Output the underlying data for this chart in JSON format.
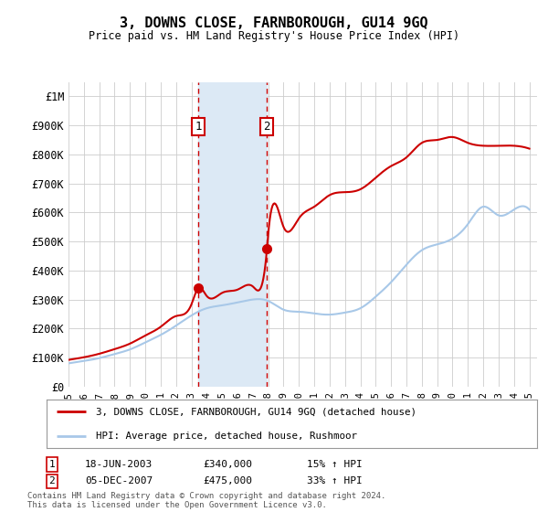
{
  "title": "3, DOWNS CLOSE, FARNBOROUGH, GU14 9GQ",
  "subtitle": "Price paid vs. HM Land Registry's House Price Index (HPI)",
  "ylabel_ticks": [
    "£0",
    "£100K",
    "£200K",
    "£300K",
    "£400K",
    "£500K",
    "£600K",
    "£700K",
    "£800K",
    "£900K",
    "£1M"
  ],
  "ytick_values": [
    0,
    100000,
    200000,
    300000,
    400000,
    500000,
    600000,
    700000,
    800000,
    900000,
    1000000
  ],
  "ylim": [
    0,
    1050000
  ],
  "sale1": {
    "date_label": "18-JUN-2003",
    "price": 340000,
    "pct": "15%",
    "direction": "↑",
    "num": "1"
  },
  "sale2": {
    "date_label": "05-DEC-2007",
    "price": 475000,
    "pct": "33%",
    "direction": "↑",
    "num": "2"
  },
  "sale1_x": 2003.46,
  "sale2_x": 2007.92,
  "legend_line1": "3, DOWNS CLOSE, FARNBOROUGH, GU14 9GQ (detached house)",
  "legend_line2": "HPI: Average price, detached house, Rushmoor",
  "footer": "Contains HM Land Registry data © Crown copyright and database right 2024.\nThis data is licensed under the Open Government Licence v3.0.",
  "hpi_color": "#a8c8e8",
  "price_color": "#cc0000",
  "shade_color": "#dce9f5",
  "grid_color": "#cccccc",
  "background_color": "#ffffff",
  "hpi_points_x": [
    1995,
    1996,
    1997,
    1998,
    1999,
    2000,
    2001,
    2002,
    2003,
    2004,
    2005,
    2006,
    2007,
    2008,
    2009,
    2010,
    2011,
    2012,
    2013,
    2014,
    2015,
    2016,
    2017,
    2018,
    2019,
    2020,
    2021,
    2022,
    2023,
    2024,
    2025
  ],
  "hpi_points_y": [
    80000,
    88000,
    98000,
    112000,
    128000,
    152000,
    178000,
    210000,
    245000,
    270000,
    280000,
    290000,
    300000,
    295000,
    265000,
    258000,
    252000,
    248000,
    255000,
    270000,
    310000,
    360000,
    420000,
    470000,
    490000,
    510000,
    560000,
    620000,
    590000,
    610000,
    610000
  ],
  "price_points_x": [
    1995,
    1996,
    1997,
    1998,
    1999,
    2000,
    2001,
    2002,
    2003,
    2003.46,
    2004,
    2005,
    2006,
    2007,
    2007.92,
    2008,
    2009,
    2010,
    2011,
    2012,
    2013,
    2014,
    2015,
    2016,
    2017,
    2018,
    2019,
    2020,
    2021,
    2022,
    2023,
    2024,
    2025
  ],
  "price_points_y": [
    92000,
    101000,
    113000,
    129000,
    148000,
    176000,
    206000,
    243000,
    283000,
    340000,
    312000,
    323000,
    334000,
    345000,
    475000,
    525000,
    550000,
    580000,
    620000,
    660000,
    670000,
    680000,
    720000,
    760000,
    790000,
    840000,
    850000,
    860000,
    840000,
    830000,
    830000,
    830000,
    820000
  ]
}
